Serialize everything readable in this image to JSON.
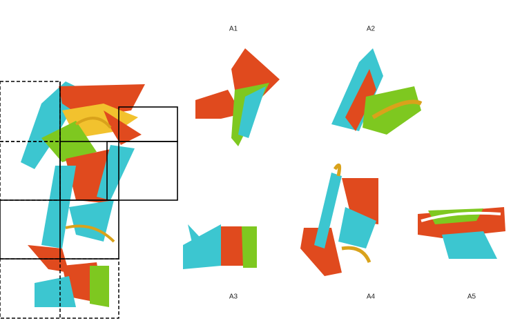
{
  "panels": [
    {
      "label": "A1"
    },
    {
      "label": "A2"
    },
    {
      "label": "A3"
    },
    {
      "label": "A4"
    },
    {
      "label": "A5"
    }
  ]
}
